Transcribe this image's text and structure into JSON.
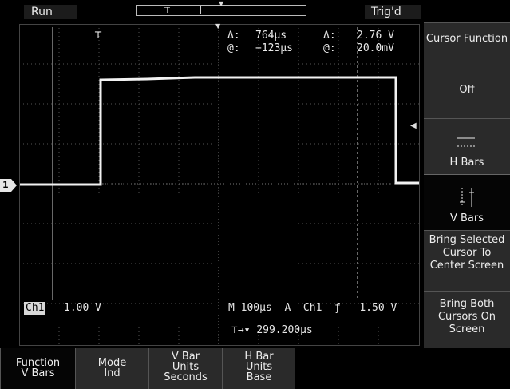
{
  "status": {
    "acq_state": "Run",
    "trigger_state": "Trig'd"
  },
  "readouts": {
    "delta_time_label": "Δ:",
    "delta_time_value": "764μs",
    "delta_volt_label": "Δ:",
    "delta_volt_value": "2.76 V",
    "cursor_time_label": "@:",
    "cursor_time_value": "−123μs",
    "cursor_volt_label": "@:",
    "cursor_volt_value": "20.0mV"
  },
  "channel": {
    "name": "Ch1",
    "scale": "1.00 V",
    "ground_marker": "1"
  },
  "timebase": {
    "text": "M 100μs  A  Ch1  ƒ   1.50 V",
    "trigger_delay": "299.200μs"
  },
  "side_menu": {
    "cursor_function": "Cursor Function",
    "off": "Off",
    "h_bars": "H Bars",
    "v_bars": "V Bars",
    "bring_selected": "Bring Selected Cursor To Center Screen",
    "bring_both": "Bring Both Cursors On Screen"
  },
  "bottom_menu": {
    "function_line1": "Function",
    "function_line2": "V Bars",
    "mode_line1": "Mode",
    "mode_line2": "Ind",
    "vbar_units_line1": "V Bar",
    "vbar_units_line2": "Units",
    "vbar_units_line3": "Seconds",
    "hbar_units_line1": "H Bar",
    "hbar_units_line2": "Units",
    "hbar_units_line3": "Base"
  }
}
